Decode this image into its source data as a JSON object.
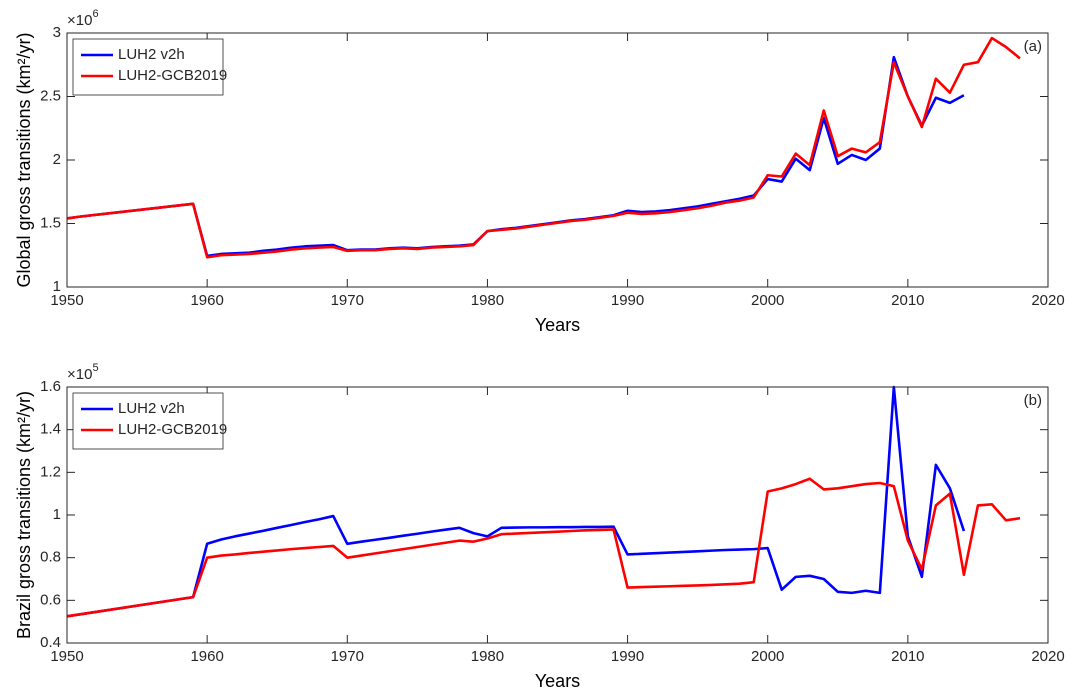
{
  "chart_data": [
    {
      "type": "line",
      "xlabel": "Years",
      "ylabel": "Global gross transitions (km²/yr)",
      "y_multiplier": "×10",
      "y_exponent": "6",
      "annotation": "(a)",
      "legend": "upper left",
      "box": true,
      "xlim": [
        1950,
        2020
      ],
      "xticks": [
        1950,
        1960,
        1970,
        1980,
        1990,
        2000,
        2010,
        2020
      ],
      "ylim": [
        1,
        3
      ],
      "yticks": [
        1,
        1.5,
        2,
        2.5,
        3
      ],
      "x": [
        1950,
        1951,
        1959,
        1960,
        1961,
        1962,
        1963,
        1964,
        1965,
        1966,
        1967,
        1968,
        1969,
        1970,
        1971,
        1972,
        1973,
        1974,
        1975,
        1976,
        1977,
        1978,
        1979,
        1980,
        1981,
        1982,
        1983,
        1984,
        1985,
        1986,
        1987,
        1988,
        1989,
        1990,
        1991,
        1992,
        1993,
        1994,
        1995,
        1996,
        1997,
        1998,
        1999,
        2000,
        2001,
        2002,
        2003,
        2004,
        2005,
        2006,
        2007,
        2008,
        2009,
        2010,
        2011,
        2012,
        2013,
        2014,
        2015,
        2016,
        2017,
        2018
      ],
      "series": [
        {
          "name": "LUH2 v2h",
          "color": "#0000ff",
          "values": [
            1.54,
            1.555,
            1.655,
            1.245,
            1.26,
            1.265,
            1.27,
            1.285,
            1.295,
            1.31,
            1.32,
            1.325,
            1.33,
            1.29,
            1.295,
            1.295,
            1.305,
            1.31,
            1.305,
            1.315,
            1.32,
            1.325,
            1.335,
            1.44,
            1.455,
            1.465,
            1.48,
            1.495,
            1.51,
            1.525,
            1.535,
            1.55,
            1.565,
            1.6,
            1.59,
            1.595,
            1.605,
            1.62,
            1.635,
            1.655,
            1.675,
            1.695,
            1.72,
            1.85,
            1.83,
            2.01,
            1.92,
            2.33,
            1.97,
            2.04,
            2.0,
            2.09,
            2.81,
            2.5,
            2.27,
            2.49,
            2.45,
            2.51,
            null,
            null,
            null,
            null
          ]
        },
        {
          "name": "LUH2-GCB2019",
          "color": "#ff0000",
          "values": [
            1.54,
            1.555,
            1.655,
            1.235,
            1.25,
            1.255,
            1.26,
            1.27,
            1.28,
            1.295,
            1.305,
            1.31,
            1.315,
            1.285,
            1.29,
            1.29,
            1.3,
            1.305,
            1.3,
            1.31,
            1.315,
            1.32,
            1.33,
            1.44,
            1.45,
            1.46,
            1.475,
            1.49,
            1.505,
            1.52,
            1.53,
            1.545,
            1.56,
            1.585,
            1.575,
            1.58,
            1.59,
            1.605,
            1.62,
            1.64,
            1.665,
            1.68,
            1.705,
            1.88,
            1.87,
            2.05,
            1.96,
            2.39,
            2.03,
            2.09,
            2.06,
            2.14,
            2.77,
            2.5,
            2.26,
            2.64,
            2.53,
            2.75,
            2.77,
            2.96,
            2.89,
            2.8
          ]
        }
      ]
    },
    {
      "type": "line",
      "xlabel": "Years",
      "ylabel": "Brazil gross transitions (km²/yr)",
      "y_multiplier": "×10",
      "y_exponent": "5",
      "annotation": "(b)",
      "legend": "upper left",
      "box": true,
      "xlim": [
        1950,
        2020
      ],
      "xticks": [
        1950,
        1960,
        1970,
        1980,
        1990,
        2000,
        2010,
        2020
      ],
      "ylim": [
        0.4,
        1.6
      ],
      "yticks": [
        0.4,
        0.6,
        0.8,
        1,
        1.2,
        1.4,
        1.6
      ],
      "x": [
        1950,
        1951,
        1959,
        1960,
        1961,
        1962,
        1963,
        1964,
        1965,
        1966,
        1967,
        1968,
        1969,
        1970,
        1971,
        1972,
        1973,
        1974,
        1975,
        1976,
        1977,
        1978,
        1979,
        1980,
        1981,
        1982,
        1983,
        1984,
        1985,
        1986,
        1987,
        1988,
        1989,
        1990,
        1991,
        1992,
        1993,
        1994,
        1995,
        1996,
        1997,
        1998,
        1999,
        2000,
        2001,
        2002,
        2003,
        2004,
        2005,
        2006,
        2007,
        2008,
        2009,
        2010,
        2011,
        2012,
        2013,
        2014,
        2015,
        2016,
        2017,
        2018
      ],
      "series": [
        {
          "name": "LUH2 v2h",
          "color": "#0000ff",
          "values": [
            0.525,
            0.535,
            0.615,
            0.865,
            0.885,
            0.9,
            0.913,
            0.926,
            0.94,
            0.953,
            0.967,
            0.98,
            0.995,
            0.865,
            0.875,
            0.884,
            0.893,
            0.903,
            0.912,
            0.922,
            0.931,
            0.94,
            0.915,
            0.9,
            0.94,
            0.941,
            0.942,
            0.942,
            0.943,
            0.943,
            0.944,
            0.944,
            0.945,
            0.815,
            0.818,
            0.821,
            0.824,
            0.827,
            0.83,
            0.833,
            0.836,
            0.838,
            0.84,
            0.845,
            0.65,
            0.71,
            0.715,
            0.7,
            0.64,
            0.635,
            0.645,
            0.635,
            1.6,
            0.9,
            0.71,
            1.235,
            1.125,
            0.925,
            null,
            null,
            null,
            null
          ]
        },
        {
          "name": "LUH2-GCB2019",
          "color": "#ff0000",
          "values": [
            0.525,
            0.535,
            0.615,
            0.8,
            0.81,
            0.815,
            0.822,
            0.828,
            0.834,
            0.84,
            0.845,
            0.85,
            0.855,
            0.8,
            0.81,
            0.82,
            0.83,
            0.84,
            0.85,
            0.86,
            0.87,
            0.88,
            0.875,
            0.89,
            0.91,
            0.913,
            0.916,
            0.919,
            0.922,
            0.925,
            0.928,
            0.93,
            0.932,
            0.66,
            0.662,
            0.664,
            0.666,
            0.668,
            0.67,
            0.672,
            0.675,
            0.678,
            0.685,
            1.11,
            1.125,
            1.145,
            1.17,
            1.12,
            1.125,
            1.135,
            1.145,
            1.15,
            1.135,
            0.88,
            0.745,
            1.045,
            1.1,
            0.72,
            1.045,
            1.05,
            0.975,
            0.985
          ]
        }
      ]
    }
  ]
}
